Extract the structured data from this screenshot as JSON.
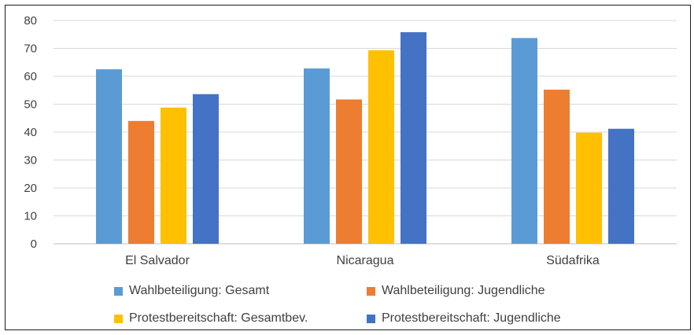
{
  "chart_data": {
    "type": "bar",
    "categories": [
      "El Salvador",
      "Nicaragua",
      "Südafrika"
    ],
    "series": [
      {
        "name": "Wahlbeteiligung: Gesamt",
        "values": [
          62.5,
          62.8,
          73.7
        ],
        "color": "#5B9BD5"
      },
      {
        "name": "Wahlbeteiligung: Jugendliche",
        "values": [
          44,
          51.7,
          55.2
        ],
        "color": "#ED7D31"
      },
      {
        "name": "Protestbereitschaft: Gesamtbev.",
        "values": [
          48.8,
          69.3,
          39.8
        ],
        "color": "#FFC000"
      },
      {
        "name": "Protestbereitschaft: Jugendliche",
        "values": [
          53.6,
          75.8,
          41.2
        ],
        "color": "#4472C4"
      }
    ],
    "yticks": [
      0,
      10,
      20,
      30,
      40,
      50,
      60,
      70,
      80
    ],
    "ylim": [
      0,
      80
    ],
    "grid": true,
    "legend_position": "bottom"
  }
}
